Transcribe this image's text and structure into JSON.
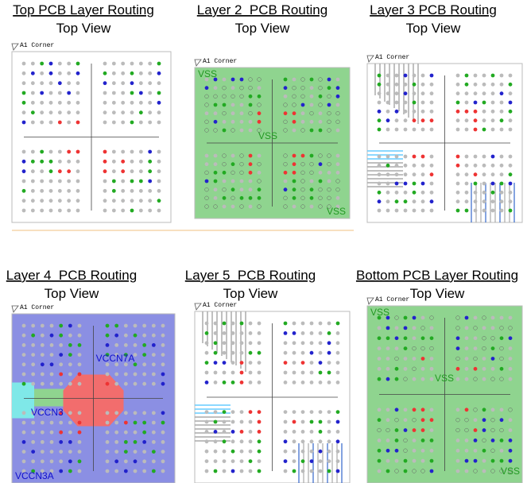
{
  "panels": [
    {
      "title": "Top PCB Layer Routing",
      "subtitle": "Top View",
      "corner": "A1 Corner",
      "labels": []
    },
    {
      "title": "Layer 2  PCB Routing",
      "subtitle": "Top View",
      "corner": "A1 Corner",
      "labels": [
        "VSS",
        "VSS",
        "VSS"
      ]
    },
    {
      "title": "Layer 3 PCB Routing",
      "subtitle": "Top View",
      "corner": "A1 Corner",
      "labels": []
    },
    {
      "title": "Layer 4  PCB Routing",
      "subtitle": "Top View",
      "corner": "A1 Corner",
      "labels": [
        "VCCN7A",
        "VCCN3",
        "VCCN3A"
      ]
    },
    {
      "title": "Layer 5  PCB Routing",
      "subtitle": "Top View",
      "corner": "A1 Corner",
      "labels": []
    },
    {
      "title": "Bottom PCB Layer Routing",
      "subtitle": "Top View",
      "corner": "A1 Corner",
      "labels": [
        "VSS",
        "VSS",
        "VSS"
      ]
    }
  ]
}
